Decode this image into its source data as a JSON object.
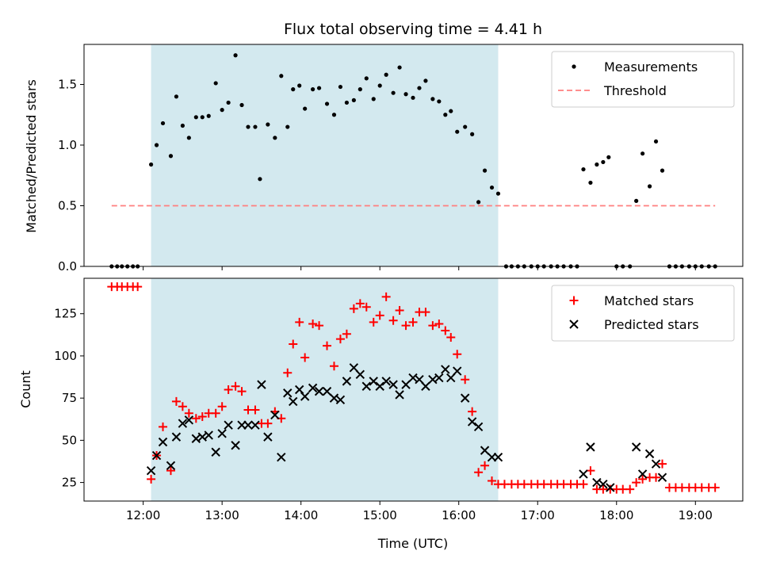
{
  "chart_data": {
    "type": "scatter",
    "title": "Flux total observing time = 4.41 h",
    "xlabel": "Time (UTC)",
    "x_unit": "hours (UTC)",
    "xlim": [
      11.25,
      19.6
    ],
    "x_ticks": [
      12,
      13,
      14,
      15,
      16,
      17,
      18,
      19
    ],
    "x_tick_labels": [
      "12:00",
      "13:00",
      "14:00",
      "15:00",
      "16:00",
      "17:00",
      "18:00",
      "19:00"
    ],
    "highlight_band": {
      "x_start": 12.1,
      "x_end": 16.5,
      "color": "#d3e9ef"
    },
    "top": {
      "ylabel": "Matched/Predicted stars",
      "ylim": [
        0,
        1.83
      ],
      "y_ticks": [
        0,
        0.5,
        1,
        1.5
      ],
      "y_tick_labels": [
        "0.0",
        "0.5",
        "1.0",
        "1.5"
      ],
      "legend": {
        "position": "upper right",
        "entries": [
          {
            "label": "Measurements",
            "marker": "dot",
            "color": "#000000"
          },
          {
            "label": "Threshold",
            "marker": "dashed-line",
            "color": "#ff7f7f"
          }
        ]
      },
      "threshold": {
        "value": 0.5,
        "x_range": [
          11.6,
          19.25
        ],
        "color": "#ff7f7f"
      },
      "measurements": {
        "color": "#000000",
        "x": [
          11.6,
          11.67,
          11.73,
          11.8,
          11.87,
          11.93,
          12.1,
          12.17,
          12.25,
          12.35,
          12.42,
          12.5,
          12.58,
          12.67,
          12.75,
          12.83,
          12.92,
          13.0,
          13.08,
          13.17,
          13.25,
          13.33,
          13.42,
          13.48,
          13.58,
          13.67,
          13.75,
          13.83,
          13.9,
          13.98,
          14.05,
          14.15,
          14.23,
          14.33,
          14.42,
          14.5,
          14.58,
          14.67,
          14.75,
          14.83,
          14.92,
          15.0,
          15.08,
          15.17,
          15.25,
          15.33,
          15.42,
          15.5,
          15.58,
          15.67,
          15.75,
          15.83,
          15.9,
          15.98,
          16.08,
          16.17,
          16.25,
          16.33,
          16.42,
          16.5,
          16.6,
          16.67,
          16.75,
          16.83,
          16.92,
          17.0,
          17.08,
          17.17,
          17.25,
          17.33,
          17.42,
          17.5,
          17.58,
          17.67,
          17.75,
          17.83,
          17.9,
          18.0,
          18.08,
          18.17,
          18.25,
          18.33,
          18.42,
          18.5,
          18.58,
          18.67,
          18.75,
          18.83,
          18.92,
          19.0,
          19.08,
          19.17,
          19.25
        ],
        "y": [
          0,
          0,
          0,
          0,
          0,
          0,
          0.84,
          1.0,
          1.18,
          0.91,
          1.4,
          1.16,
          1.06,
          1.23,
          1.23,
          1.24,
          1.51,
          1.29,
          1.35,
          1.74,
          1.33,
          1.15,
          1.15,
          0.72,
          1.17,
          1.06,
          1.57,
          1.15,
          1.46,
          1.49,
          1.3,
          1.46,
          1.47,
          1.34,
          1.25,
          1.48,
          1.35,
          1.37,
          1.46,
          1.55,
          1.38,
          1.49,
          1.58,
          1.43,
          1.64,
          1.42,
          1.39,
          1.47,
          1.53,
          1.38,
          1.36,
          1.25,
          1.28,
          1.11,
          1.15,
          1.09,
          0.53,
          0.79,
          0.65,
          0.6,
          0,
          0,
          0,
          0,
          0,
          0,
          0,
          0,
          0,
          0,
          0,
          0,
          0.8,
          0.69,
          0.84,
          0.86,
          0.9,
          0,
          0,
          0,
          0.54,
          0.93,
          0.66,
          1.03,
          0.79,
          0,
          0,
          0,
          0,
          0,
          0,
          0,
          0
        ]
      }
    },
    "bottom": {
      "ylabel": "Count",
      "ylim": [
        14,
        146
      ],
      "y_ticks": [
        25,
        50,
        75,
        100,
        125
      ],
      "y_tick_labels": [
        "25",
        "50",
        "75",
        "100",
        "125"
      ],
      "legend": {
        "position": "upper right",
        "entries": [
          {
            "label": "Matched stars",
            "marker": "plus",
            "color": "#ff0000"
          },
          {
            "label": "Predicted stars",
            "marker": "x",
            "color": "#000000"
          }
        ]
      },
      "series": [
        {
          "name": "Matched stars",
          "marker": "plus",
          "color": "#ff0000",
          "x": [
            11.6,
            11.67,
            11.73,
            11.8,
            11.87,
            11.93,
            12.1,
            12.17,
            12.25,
            12.35,
            12.42,
            12.5,
            12.58,
            12.67,
            12.75,
            12.83,
            12.92,
            13.0,
            13.08,
            13.17,
            13.25,
            13.33,
            13.42,
            13.5,
            13.58,
            13.67,
            13.75,
            13.83,
            13.9,
            13.98,
            14.05,
            14.15,
            14.23,
            14.33,
            14.42,
            14.5,
            14.58,
            14.67,
            14.75,
            14.83,
            14.92,
            15.0,
            15.08,
            15.17,
            15.25,
            15.33,
            15.42,
            15.5,
            15.58,
            15.67,
            15.75,
            15.83,
            15.9,
            15.98,
            16.08,
            16.17,
            16.25,
            16.33,
            16.42,
            16.5,
            16.58,
            16.67,
            16.75,
            16.83,
            16.92,
            17.0,
            17.08,
            17.17,
            17.25,
            17.33,
            17.42,
            17.5,
            17.58,
            17.67,
            17.75,
            17.83,
            17.92,
            18.0,
            18.08,
            18.17,
            18.25,
            18.33,
            18.42,
            18.5,
            18.58,
            18.67,
            18.75,
            18.83,
            18.92,
            19.0,
            19.08,
            19.17,
            19.25
          ],
          "y": [
            141,
            141,
            141,
            141,
            141,
            141,
            27,
            41,
            58,
            32,
            73,
            70,
            66,
            63,
            64,
            66,
            66,
            70,
            80,
            82,
            79,
            68,
            68,
            60,
            60,
            67,
            63,
            90,
            107,
            120,
            99,
            119,
            118,
            106,
            94,
            110,
            113,
            128,
            131,
            129,
            120,
            124,
            135,
            121,
            127,
            118,
            120,
            126,
            126,
            118,
            119,
            115,
            111,
            101,
            86,
            67,
            31,
            35,
            26,
            24,
            24,
            24,
            24,
            24,
            24,
            24,
            24,
            24,
            24,
            24,
            24,
            24,
            24,
            32,
            21,
            21,
            21,
            21,
            21,
            21,
            25,
            27,
            28,
            28,
            36,
            22,
            22,
            22,
            22,
            22,
            22,
            22,
            22
          ]
        },
        {
          "name": "Predicted stars",
          "marker": "x",
          "color": "#000000",
          "x": [
            12.1,
            12.17,
            12.25,
            12.35,
            12.42,
            12.5,
            12.58,
            12.67,
            12.75,
            12.83,
            12.92,
            13.0,
            13.08,
            13.17,
            13.25,
            13.33,
            13.42,
            13.5,
            13.58,
            13.67,
            13.75,
            13.83,
            13.9,
            13.98,
            14.05,
            14.15,
            14.23,
            14.33,
            14.42,
            14.5,
            14.58,
            14.67,
            14.75,
            14.83,
            14.92,
            15.0,
            15.08,
            15.17,
            15.25,
            15.33,
            15.42,
            15.5,
            15.58,
            15.67,
            15.75,
            15.83,
            15.9,
            15.98,
            16.08,
            16.17,
            16.25,
            16.33,
            16.42,
            16.5,
            17.58,
            17.67,
            17.75,
            17.83,
            17.92,
            18.25,
            18.33,
            18.42,
            18.5,
            18.58
          ],
          "y": [
            32,
            41,
            49,
            35,
            52,
            60,
            62,
            51,
            52,
            53,
            43,
            54,
            59,
            47,
            59,
            59,
            59,
            83,
            52,
            65,
            40,
            78,
            73,
            80,
            76,
            81,
            79,
            79,
            75,
            74,
            85,
            93,
            89,
            82,
            85,
            82,
            85,
            83,
            77,
            83,
            87,
            86,
            82,
            86,
            87,
            92,
            87,
            91,
            75,
            61,
            58,
            44,
            40,
            40,
            30,
            46,
            25,
            24,
            22,
            46,
            30,
            42,
            36,
            28
          ]
        }
      ]
    }
  }
}
